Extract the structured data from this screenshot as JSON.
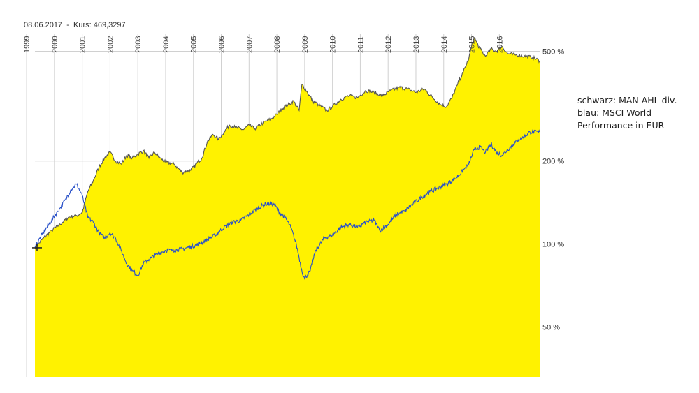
{
  "header": {
    "date": "08.06.2017",
    "separator": "-",
    "kurs_label": "Kurs:",
    "kurs_value": "469,3297"
  },
  "legend_note": [
    "schwarz: MAN AHL div.",
    "blau: MSCI World",
    "Performance in EUR"
  ],
  "colors": {
    "area_fill": "#fff200",
    "area_line": "#555555",
    "blue_line": "#2850c8",
    "grid": "#d0d0d0"
  },
  "chart_data": {
    "type": "area",
    "title": "",
    "xlabel": "",
    "ylabel": "",
    "y_scale": "log",
    "ylim": [
      33,
      580
    ],
    "xlim": [
      1999.3,
      2017.45
    ],
    "x_tick_labels": [
      "1999",
      "2000",
      "2001",
      "2002",
      "2003",
      "2004",
      "2005",
      "2006",
      "2007",
      "2008",
      "2009",
      "2010",
      "2011",
      "2012",
      "2013",
      "2014",
      "2015",
      "2016"
    ],
    "y_ticks": [
      {
        "value": 50,
        "label": "50 %"
      },
      {
        "value": 100,
        "label": "100 %"
      },
      {
        "value": 200,
        "label": "200 %"
      },
      {
        "value": 500,
        "label": "500 %"
      }
    ],
    "grid": true,
    "series": [
      {
        "name": "MAN AHL div.",
        "style": "area",
        "x": [
          1999.3,
          1999.6,
          1999.9,
          2000.2,
          2000.5,
          2000.8,
          2001.0,
          2001.2,
          2001.4,
          2001.6,
          2001.8,
          2002.0,
          2002.2,
          2002.4,
          2002.6,
          2002.8,
          2003.0,
          2003.2,
          2003.4,
          2003.6,
          2003.8,
          2004.0,
          2004.3,
          2004.6,
          2004.9,
          2005.1,
          2005.3,
          2005.5,
          2005.7,
          2005.9,
          2006.1,
          2006.3,
          2006.5,
          2006.8,
          2007.0,
          2007.2,
          2007.5,
          2007.8,
          2008.0,
          2008.2,
          2008.4,
          2008.6,
          2008.8,
          2008.9,
          2009.1,
          2009.3,
          2009.5,
          2009.8,
          2010.0,
          2010.3,
          2010.6,
          2010.9,
          2011.2,
          2011.5,
          2011.8,
          2012.1,
          2012.4,
          2012.7,
          2013.0,
          2013.3,
          2013.6,
          2013.9,
          2014.1,
          2014.3,
          2014.5,
          2014.7,
          2014.9,
          2015.0,
          2015.1,
          2015.3,
          2015.5,
          2015.7,
          2015.9,
          2016.1,
          2016.3,
          2016.6,
          2016.9,
          2017.2,
          2017.45
        ],
        "values": [
          97,
          105,
          112,
          118,
          125,
          127,
          130,
          155,
          170,
          190,
          205,
          215,
          200,
          195,
          210,
          205,
          212,
          218,
          205,
          215,
          205,
          198,
          195,
          182,
          185,
          195,
          205,
          235,
          250,
          240,
          255,
          270,
          265,
          260,
          270,
          262,
          275,
          285,
          295,
          310,
          320,
          330,
          305,
          380,
          355,
          330,
          320,
          305,
          315,
          335,
          345,
          340,
          360,
          355,
          345,
          360,
          370,
          365,
          355,
          365,
          340,
          320,
          315,
          340,
          380,
          420,
          470,
          520,
          560,
          510,
          480,
          510,
          500,
          520,
          490,
          485,
          480,
          475,
          462
        ]
      },
      {
        "name": "MSCI World",
        "style": "line",
        "x": [
          1999.3,
          1999.6,
          1999.9,
          2000.2,
          2000.4,
          2000.6,
          2000.8,
          2001.0,
          2001.2,
          2001.4,
          2001.6,
          2001.8,
          2002.0,
          2002.2,
          2002.4,
          2002.6,
          2002.8,
          2003.0,
          2003.2,
          2003.4,
          2003.7,
          2004.0,
          2004.3,
          2004.6,
          2004.9,
          2005.2,
          2005.5,
          2005.8,
          2006.1,
          2006.4,
          2006.7,
          2007.0,
          2007.3,
          2007.6,
          2007.9,
          2008.1,
          2008.3,
          2008.5,
          2008.7,
          2008.9,
          2009.0,
          2009.2,
          2009.4,
          2009.7,
          2010.0,
          2010.3,
          2010.6,
          2010.9,
          2011.2,
          2011.5,
          2011.7,
          2012.0,
          2012.3,
          2012.6,
          2012.9,
          2013.2,
          2013.5,
          2013.8,
          2014.1,
          2014.4,
          2014.7,
          2014.9,
          2015.1,
          2015.3,
          2015.5,
          2015.7,
          2015.9,
          2016.1,
          2016.3,
          2016.5,
          2016.7,
          2016.9,
          2017.1,
          2017.45
        ],
        "values": [
          98,
          110,
          122,
          135,
          145,
          158,
          165,
          150,
          125,
          120,
          110,
          105,
          110,
          105,
          95,
          85,
          80,
          77,
          85,
          88,
          92,
          95,
          95,
          96,
          98,
          100,
          104,
          108,
          115,
          120,
          122,
          128,
          135,
          140,
          140,
          130,
          125,
          115,
          100,
          80,
          75,
          80,
          95,
          105,
          108,
          115,
          118,
          115,
          120,
          122,
          112,
          118,
          128,
          132,
          140,
          148,
          155,
          160,
          165,
          172,
          185,
          195,
          220,
          225,
          215,
          230,
          215,
          210,
          220,
          230,
          240,
          245,
          255,
          255
        ]
      }
    ]
  }
}
